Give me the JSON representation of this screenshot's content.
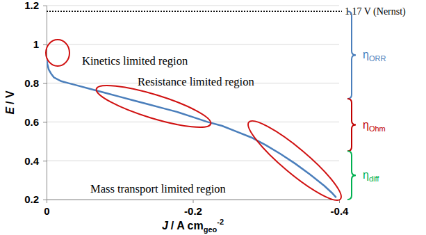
{
  "chart_data": {
    "type": "line",
    "xlabel": {
      "symbol": "J",
      "unit": "/ A cm",
      "subscript": "geo",
      "superscript": "-2"
    },
    "ylabel": {
      "symbol": "E",
      "unit": "/ V"
    },
    "x": [
      0,
      -0.001,
      -0.003,
      -0.006,
      -0.01,
      -0.02,
      -0.03,
      -0.04,
      -0.06,
      -0.08,
      -0.1,
      -0.12,
      -0.14,
      -0.16,
      -0.18,
      -0.2,
      -0.22,
      -0.24,
      -0.26,
      -0.28,
      -0.3,
      -0.32,
      -0.34,
      -0.36,
      -0.38,
      -0.39,
      -0.396
    ],
    "values": [
      0.93,
      0.9,
      0.87,
      0.85,
      0.83,
      0.81,
      0.8,
      0.79,
      0.77,
      0.75,
      0.73,
      0.71,
      0.69,
      0.67,
      0.65,
      0.625,
      0.6,
      0.58,
      0.55,
      0.52,
      0.48,
      0.435,
      0.385,
      0.33,
      0.27,
      0.235,
      0.21
    ],
    "color": "#4a7ebb",
    "xlim": [
      0,
      -0.4
    ],
    "ylim": [
      0.2,
      1.2
    ],
    "xticks": [
      0,
      -0.2,
      -0.4
    ],
    "yticks": [
      0.2,
      0.4,
      0.6,
      0.8,
      1,
      1.2
    ],
    "grid": true,
    "reference_line": {
      "value": 1.17,
      "label": "1.17 V (Nernst)"
    },
    "annotations": [
      "Kinetics limited region",
      "Resistance limited region",
      "Mass transport limited region"
    ],
    "overpotentials": [
      {
        "symbol": "η",
        "subscript": "ORR",
        "color": "#4a7ebb",
        "from": 1.17,
        "to": 0.72
      },
      {
        "symbol": "η",
        "subscript": "Ohm",
        "color": "#c00000",
        "from": 0.72,
        "to": 0.45
      },
      {
        "symbol": "η",
        "subscript": "diff",
        "color": "#00b050",
        "from": 0.45,
        "to": 0.2
      }
    ]
  }
}
